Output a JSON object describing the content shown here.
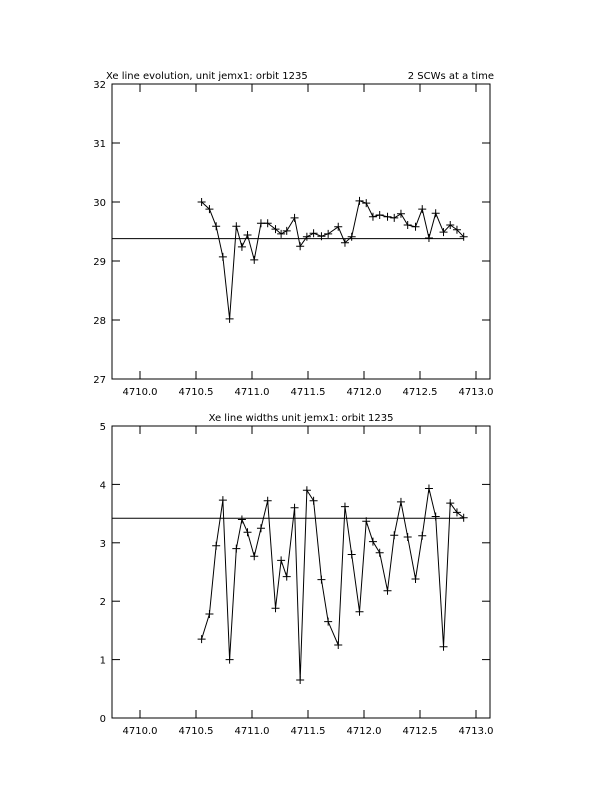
{
  "chart_data": [
    {
      "type": "line",
      "title": "Xe line evolution, unit jemx1: orbit 1235",
      "subtitle": "2 SCWs at a time",
      "x": [
        4710.55,
        4710.62,
        4710.68,
        4710.74,
        4710.8,
        4710.86,
        4710.91,
        4710.96,
        4711.02,
        4711.08,
        4711.14,
        4711.21,
        4711.26,
        4711.31,
        4711.38,
        4711.43,
        4711.49,
        4711.55,
        4711.62,
        4711.68,
        4711.77,
        4711.83,
        4711.89,
        4711.96,
        4712.02,
        4712.08,
        4712.14,
        4712.21,
        4712.27,
        4712.33,
        4712.39,
        4712.46,
        4712.52,
        4712.58,
        4712.64,
        4712.71,
        4712.77,
        4712.83,
        4712.89
      ],
      "series": [
        {
          "color": "#000000",
          "values": [
            30.0,
            29.88,
            29.59,
            29.07,
            28.02,
            29.59,
            29.24,
            29.44,
            29.02,
            29.64,
            29.64,
            29.54,
            29.46,
            29.51,
            29.73,
            29.25,
            29.41,
            29.47,
            29.42,
            29.46,
            29.58,
            29.31,
            29.41,
            30.02,
            29.98,
            29.75,
            29.78,
            29.75,
            29.73,
            29.8,
            29.61,
            29.58,
            29.88,
            29.39,
            29.81,
            29.49,
            29.61,
            29.53,
            29.41
          ]
        }
      ],
      "hline": 29.38,
      "xlim": [
        4709.75,
        4713.125
      ],
      "ylim": [
        27,
        32
      ],
      "xticks": [
        {
          "value": 4710,
          "label": "4710.0"
        },
        {
          "value": 4710.5,
          "label": "4710.5"
        },
        {
          "value": 4711,
          "label": "4711.0"
        },
        {
          "value": 4711.5,
          "label": "4711.5"
        },
        {
          "value": 4712,
          "label": "4712.0"
        },
        {
          "value": 4712.5,
          "label": "4712.5"
        },
        {
          "value": 4713,
          "label": "4713.0"
        }
      ],
      "yticks": [
        27,
        28,
        29,
        30,
        31,
        32
      ]
    },
    {
      "type": "line",
      "title": "Xe line widths unit jemx1: orbit 1235",
      "x": [
        4710.55,
        4710.62,
        4710.68,
        4710.74,
        4710.8,
        4710.86,
        4710.91,
        4710.96,
        4711.02,
        4711.08,
        4711.14,
        4711.21,
        4711.26,
        4711.31,
        4711.38,
        4711.43,
        4711.49,
        4711.55,
        4711.62,
        4711.68,
        4711.77,
        4711.83,
        4711.89,
        4711.96,
        4712.02,
        4712.08,
        4712.14,
        4712.21,
        4712.27,
        4712.33,
        4712.39,
        4712.46,
        4712.52,
        4712.58,
        4712.64,
        4712.71,
        4712.77,
        4712.83,
        4712.89
      ],
      "series": [
        {
          "color": "#000000",
          "values": [
            1.35,
            1.78,
            2.95,
            3.73,
            1.0,
            2.9,
            3.4,
            3.18,
            2.77,
            3.25,
            3.72,
            1.88,
            2.7,
            2.42,
            3.6,
            0.65,
            3.9,
            3.72,
            2.37,
            1.65,
            1.25,
            3.62,
            2.8,
            1.82,
            3.37,
            3.02,
            2.83,
            2.18,
            3.13,
            3.7,
            3.1,
            2.38,
            3.12,
            3.93,
            3.45,
            1.22,
            3.68,
            3.52,
            3.43
          ]
        }
      ],
      "hline": 3.42,
      "xlim": [
        4709.75,
        4713.125
      ],
      "ylim": [
        0,
        5
      ],
      "xticks": [
        {
          "value": 4710,
          "label": "4710.0"
        },
        {
          "value": 4710.5,
          "label": "4710.5"
        },
        {
          "value": 4711,
          "label": "4711.0"
        },
        {
          "value": 4711.5,
          "label": "4711.5"
        },
        {
          "value": 4712,
          "label": "4712.0"
        },
        {
          "value": 4712.5,
          "label": "4712.5"
        },
        {
          "value": 4713,
          "label": "4713.0"
        }
      ],
      "yticks": [
        0,
        1,
        2,
        3,
        4,
        5
      ]
    }
  ]
}
